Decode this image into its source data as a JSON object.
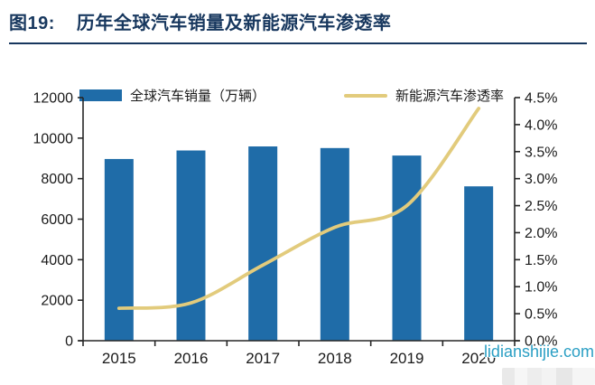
{
  "header": {
    "figure_label": "图19:",
    "title": "历年全球汽车销量及新能源汽车渗透率"
  },
  "watermark": "lidianshijie.com",
  "colors": {
    "bar": "#1f6ca8",
    "line": "#e2cb7c",
    "title": "#17375e",
    "axis": "#262626",
    "tick_text": "#1a1a1a",
    "watermark": "#2b9fc4"
  },
  "chart_data": {
    "type": "bar",
    "subtype": "combo-bar-line-dual-axis",
    "title": "历年全球汽车销量及新能源汽车渗透率",
    "categories": [
      "2015",
      "2016",
      "2017",
      "2018",
      "2019",
      "2020"
    ],
    "series": [
      {
        "name": "全球汽车销量（万辆）",
        "type": "bar",
        "axis": "left",
        "values": [
          8970,
          9390,
          9590,
          9510,
          9140,
          7620
        ]
      },
      {
        "name": "新能源汽车渗透率",
        "type": "line",
        "axis": "right",
        "unit": "%",
        "values": [
          0.6,
          0.7,
          1.4,
          2.1,
          2.5,
          4.3
        ]
      }
    ],
    "left_axis": {
      "min": 0,
      "max": 12000,
      "ticks": [
        "0",
        "2000",
        "4000",
        "6000",
        "8000",
        "10000",
        "12000"
      ]
    },
    "right_axis": {
      "min": 0,
      "max": 4.5,
      "ticks": [
        "0.0%",
        "0.5%",
        "1.0%",
        "1.5%",
        "2.0%",
        "2.5%",
        "3.0%",
        "3.5%",
        "4.0%",
        "4.5%"
      ]
    },
    "legend_position": "top",
    "grid": false
  }
}
